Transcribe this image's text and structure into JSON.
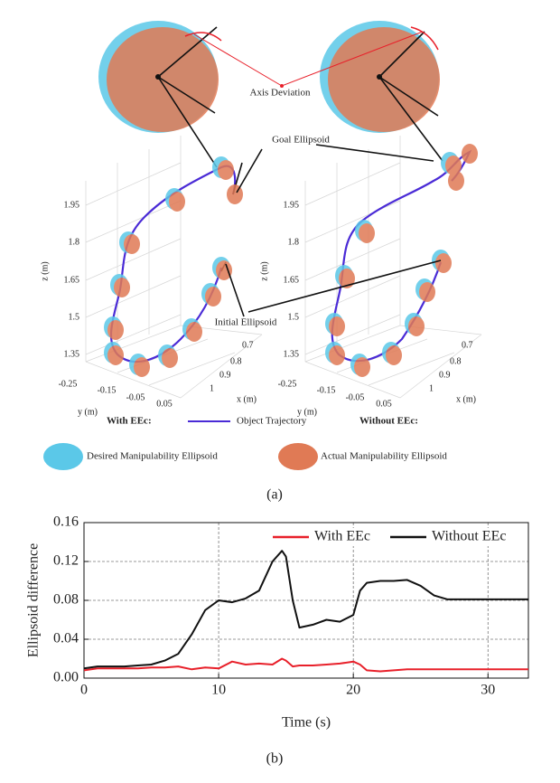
{
  "captions": [
    "(a)",
    "(b)"
  ],
  "panel_a": {
    "labels": {
      "axis_deviation": "Axis Deviation",
      "goal": "Goal Ellipsoid",
      "initial": "Initial Ellipsoid"
    },
    "z_axis": {
      "label": "z (m)",
      "ticks": [
        "1.95",
        "1.8",
        "1.65",
        "1.5",
        "1.35"
      ]
    },
    "y_axis": {
      "label": "y (m)",
      "ticks": [
        "-0.25",
        "-0.15",
        "-0.05",
        "0.05"
      ]
    },
    "x_axis": {
      "label": "x (m)",
      "ticks": [
        "0.7",
        "0.8",
        "0.9",
        "1"
      ]
    },
    "legend": {
      "with": "With EEc:",
      "trajectory": "Object Trajectory",
      "without": "Without EEc:",
      "desired": "Desired Manipulability Ellipsoid",
      "actual": "Actual Manipulability Ellipsoid"
    }
  },
  "chart_data": {
    "type": "line",
    "xlabel": "Time (s)",
    "ylabel": "Ellipsoid difference",
    "x": [
      0,
      1,
      2,
      3,
      4,
      5,
      6,
      7,
      8,
      9,
      10,
      11,
      12,
      13,
      14,
      14.7,
      15,
      15.5,
      16,
      17,
      18,
      19,
      20,
      20.5,
      21,
      22,
      23,
      24,
      25,
      26,
      27,
      28,
      29,
      30,
      31,
      32,
      33
    ],
    "series": [
      {
        "name": "With EEc",
        "color": "#e8202a",
        "values": [
          0.008,
          0.01,
          0.01,
          0.01,
          0.01,
          0.011,
          0.011,
          0.012,
          0.009,
          0.011,
          0.01,
          0.017,
          0.014,
          0.015,
          0.014,
          0.02,
          0.018,
          0.012,
          0.013,
          0.013,
          0.014,
          0.015,
          0.017,
          0.014,
          0.008,
          0.007,
          0.008,
          0.009,
          0.009,
          0.009,
          0.009,
          0.009,
          0.009,
          0.009,
          0.009,
          0.009,
          0.009
        ]
      },
      {
        "name": "Without EEc",
        "color": "#111111",
        "values": [
          0.01,
          0.012,
          0.012,
          0.012,
          0.013,
          0.014,
          0.018,
          0.025,
          0.045,
          0.07,
          0.08,
          0.078,
          0.082,
          0.09,
          0.12,
          0.131,
          0.125,
          0.08,
          0.052,
          0.055,
          0.06,
          0.058,
          0.065,
          0.09,
          0.098,
          0.1,
          0.1,
          0.101,
          0.095,
          0.085,
          0.081,
          0.081,
          0.081,
          0.081,
          0.081,
          0.081,
          0.081
        ]
      }
    ],
    "xlim": [
      0,
      33
    ],
    "xticks": [
      0,
      10,
      20,
      30
    ],
    "ylim": [
      0,
      0.16
    ],
    "yticks": [
      {
        "value": 0,
        "label": "0.00"
      },
      {
        "value": 0.04,
        "label": "0.04"
      },
      {
        "value": 0.08,
        "label": "0.08"
      },
      {
        "value": 0.12,
        "label": "0.12"
      },
      {
        "value": 0.16,
        "label": "0.16"
      }
    ],
    "grid": true,
    "legend": "upper right"
  }
}
